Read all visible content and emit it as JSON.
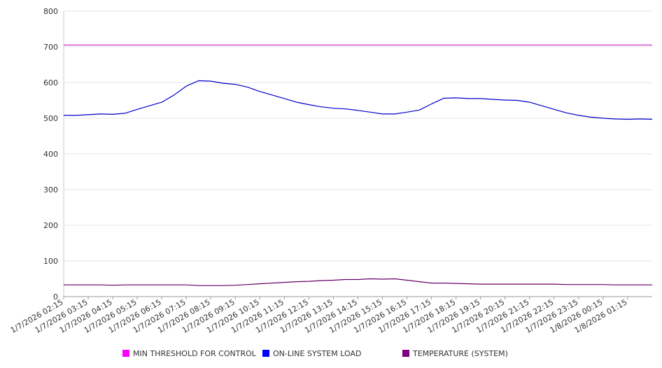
{
  "chart_data": {
    "type": "line",
    "title": "",
    "xlabel": "",
    "ylabel": "",
    "ylim": [
      0,
      800
    ],
    "yticks": [
      0,
      100,
      200,
      300,
      400,
      500,
      600,
      700,
      800
    ],
    "grid": "horizontal",
    "legend_position": "bottom",
    "x_ticks": [
      "1/7/2026 02:15",
      "1/7/2026 03:15",
      "1/7/2026 04:15",
      "1/7/2026 05:15",
      "1/7/2026 06:15",
      "1/7/2026 07:15",
      "1/7/2026 08:15",
      "1/7/2026 09:15",
      "1/7/2026 10:15",
      "1/7/2026 11:15",
      "1/7/2026 12:15",
      "1/7/2026 13:15",
      "1/7/2026 14:15",
      "1/7/2026 15:15",
      "1/7/2026 16:15",
      "1/7/2026 17:15",
      "1/7/2026 18:15",
      "1/7/2026 19:15",
      "1/7/2026 20:15",
      "1/7/2026 21:15",
      "1/7/2026 22:15",
      "1/7/2026 23:15",
      "1/8/2026 00:15",
      "1/8/2026 01:15"
    ],
    "x": [
      "1/7/2026 02:15",
      "1/7/2026 02:45",
      "1/7/2026 03:15",
      "1/7/2026 03:45",
      "1/7/2026 04:15",
      "1/7/2026 04:45",
      "1/7/2026 05:15",
      "1/7/2026 05:45",
      "1/7/2026 06:15",
      "1/7/2026 06:45",
      "1/7/2026 07:15",
      "1/7/2026 07:45",
      "1/7/2026 08:15",
      "1/7/2026 08:45",
      "1/7/2026 09:15",
      "1/7/2026 09:45",
      "1/7/2026 10:15",
      "1/7/2026 10:45",
      "1/7/2026 11:15",
      "1/7/2026 11:45",
      "1/7/2026 12:15",
      "1/7/2026 12:45",
      "1/7/2026 13:15",
      "1/7/2026 13:45",
      "1/7/2026 14:15",
      "1/7/2026 14:45",
      "1/7/2026 15:15",
      "1/7/2026 15:45",
      "1/7/2026 16:15",
      "1/7/2026 16:45",
      "1/7/2026 17:15",
      "1/7/2026 17:45",
      "1/7/2026 18:15",
      "1/7/2026 18:45",
      "1/7/2026 19:15",
      "1/7/2026 19:45",
      "1/7/2026 20:15",
      "1/7/2026 20:45",
      "1/7/2026 21:15",
      "1/7/2026 21:45",
      "1/7/2026 22:15",
      "1/7/2026 22:45",
      "1/7/2026 23:15",
      "1/7/2026 23:45",
      "1/8/2026 00:15",
      "1/8/2026 00:45",
      "1/8/2026 01:15",
      "1/8/2026 01:45",
      "1/8/2026 02:15"
    ],
    "series": [
      {
        "name": "MIN THRESHOLD FOR CONTROL",
        "color": "#cc33cc",
        "legend_color": "#ff00ff",
        "values": [
          705,
          705,
          705,
          705,
          705,
          705,
          705,
          705,
          705,
          705,
          705,
          705,
          705,
          705,
          705,
          705,
          705,
          705,
          705,
          705,
          705,
          705,
          705,
          705,
          705,
          705,
          705,
          705,
          705,
          705,
          705,
          705,
          705,
          705,
          705,
          705,
          705,
          705,
          705,
          705,
          705,
          705,
          705,
          705,
          705,
          705,
          705,
          705,
          705
        ]
      },
      {
        "name": "ON-LINE SYSTEM LOAD",
        "color": "#0000cc",
        "legend_color": "#0000ff",
        "values": [
          508,
          508,
          510,
          512,
          511,
          514,
          525,
          535,
          545,
          565,
          590,
          605,
          604,
          598,
          595,
          587,
          575,
          565,
          555,
          545,
          538,
          532,
          528,
          526,
          522,
          517,
          512,
          512,
          517,
          523,
          540,
          556,
          557,
          555,
          555,
          553,
          551,
          550,
          545,
          535,
          525,
          515,
          508,
          503,
          500,
          498,
          497,
          498,
          497
        ]
      },
      {
        "name": "TEMPERATURE (SYSTEM)",
        "color": "#660066",
        "legend_color": "#800080",
        "values": [
          33,
          33,
          33,
          33,
          32,
          33,
          33,
          33,
          33,
          33,
          33,
          31,
          31,
          31,
          32,
          34,
          36,
          38,
          40,
          42,
          43,
          45,
          46,
          48,
          48,
          50,
          49,
          50,
          46,
          42,
          38,
          38,
          37,
          36,
          35,
          35,
          35,
          35,
          35,
          35,
          35,
          34,
          34,
          34,
          34,
          33,
          33,
          33,
          33
        ]
      }
    ]
  }
}
